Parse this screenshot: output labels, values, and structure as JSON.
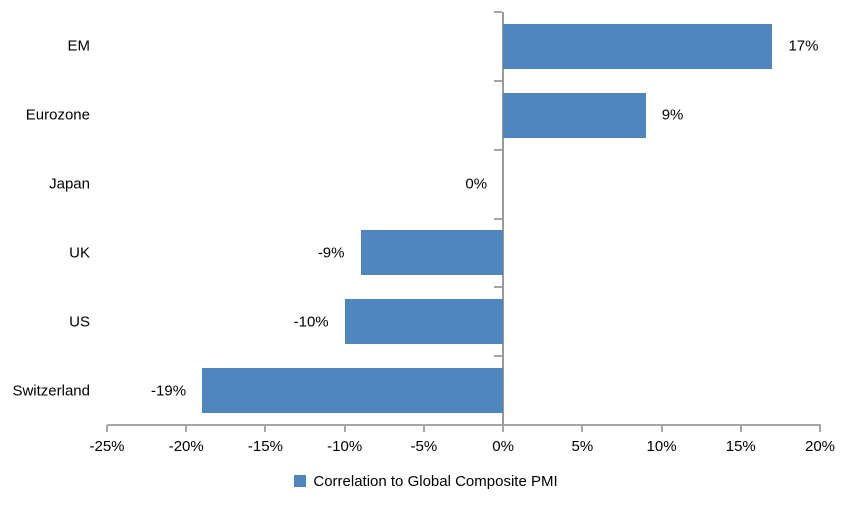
{
  "chart_data": {
    "type": "bar",
    "orientation": "horizontal",
    "categories": [
      "EM",
      "Eurozone",
      "Japan",
      "UK",
      "US",
      "Switzerland"
    ],
    "values": [
      17,
      9,
      0,
      -9,
      -10,
      -19
    ],
    "value_labels": [
      "17%",
      "9%",
      "0%",
      "-9%",
      "-10%",
      "-19%"
    ],
    "x_ticks": [
      -25,
      -20,
      -15,
      -10,
      -5,
      0,
      5,
      10,
      15,
      20
    ],
    "x_tick_labels": [
      "-25%",
      "-20%",
      "-15%",
      "-10%",
      "-5%",
      "0%",
      "5%",
      "10%",
      "15%",
      "20%"
    ],
    "xlim": [
      -25,
      20
    ],
    "grid": false,
    "legend_position": "bottom",
    "legend_label": "Correlation to Global Composite PMI",
    "bar_color": "#4F86BE",
    "axis_color": "#A6A6A6",
    "zero_line_color": "#9A9A9A",
    "text_color": "#000000"
  }
}
